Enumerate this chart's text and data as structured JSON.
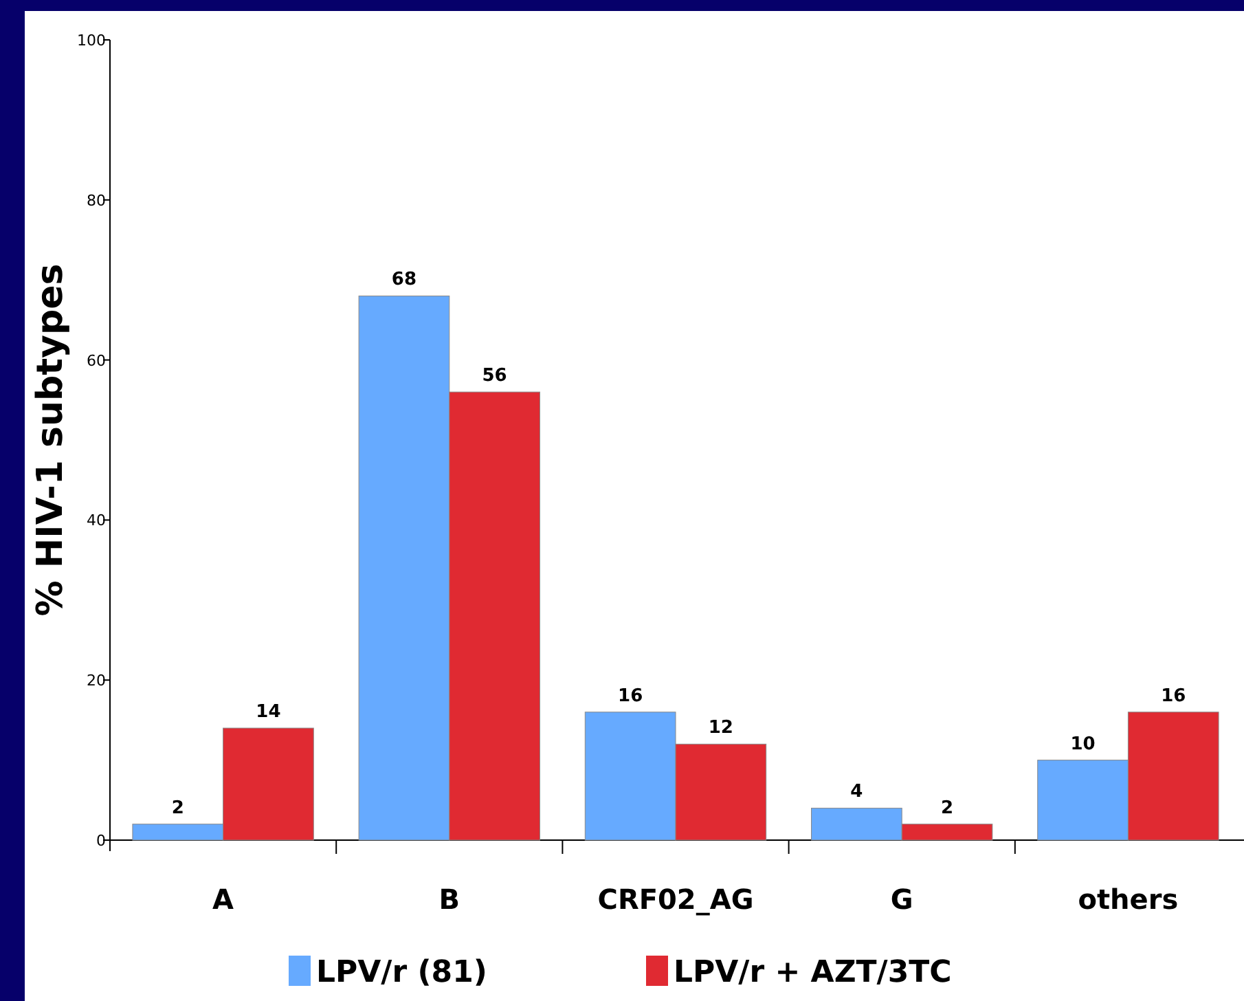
{
  "chart_data": {
    "type": "bar",
    "ylabel": "% HIV-1 subtypes",
    "categories": [
      "A",
      "B",
      "CRF02_AG",
      "G",
      "others"
    ],
    "series": [
      {
        "name": "LPV/r (81)",
        "color": "#66aaff",
        "values": [
          2,
          68,
          16,
          4,
          10
        ]
      },
      {
        "name": "LPV/r + AZT/3TC",
        "color": "#e02a32",
        "values": [
          14,
          56,
          12,
          2,
          16
        ]
      }
    ],
    "ylim": [
      0,
      100
    ],
    "yticks": [
      0,
      20,
      40,
      60,
      80,
      100
    ],
    "data_labels": true,
    "legend": "bottom",
    "grid": false
  }
}
